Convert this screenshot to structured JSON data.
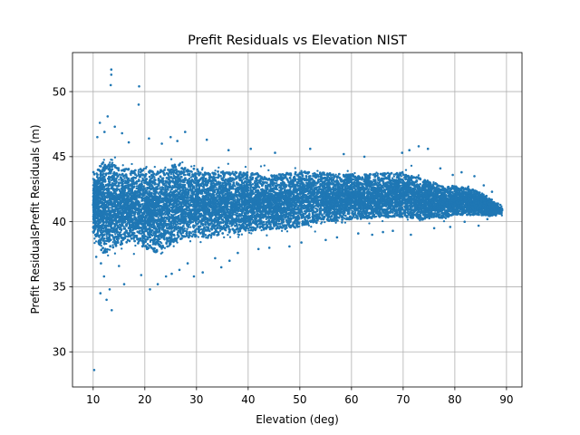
{
  "chart_data": {
    "type": "scatter",
    "title": "Prefit Residuals vs Elevation NIST",
    "xlabel": "Elevation (deg)",
    "ylabel": "Prefit ResidualsPrefit Residuals (m)",
    "xlim": [
      6,
      93
    ],
    "ylim": [
      27.3,
      53
    ],
    "x_ticks": [
      10,
      20,
      30,
      40,
      50,
      60,
      70,
      80,
      90
    ],
    "y_ticks": [
      30,
      35,
      40,
      45,
      50
    ],
    "grid": true,
    "color": "#1f77b4",
    "series": [
      {
        "name": "",
        "bands": [
          {
            "x": 10.5,
            "min": 37.2,
            "max": 45.5
          },
          {
            "x": 12,
            "min": 35.0,
            "max": 47.0
          },
          {
            "x": 14,
            "min": 35.8,
            "max": 46.5
          },
          {
            "x": 16,
            "min": 36.5,
            "max": 46.0
          },
          {
            "x": 18,
            "min": 36.5,
            "max": 46.0
          },
          {
            "x": 20,
            "min": 36.0,
            "max": 46.0
          },
          {
            "x": 22,
            "min": 35.5,
            "max": 46.0
          },
          {
            "x": 24,
            "min": 36.0,
            "max": 46.0
          },
          {
            "x": 26,
            "min": 36.5,
            "max": 46.5
          },
          {
            "x": 28,
            "min": 37.0,
            "max": 46.0
          },
          {
            "x": 30,
            "min": 37.0,
            "max": 45.8
          },
          {
            "x": 32,
            "min": 37.0,
            "max": 45.5
          },
          {
            "x": 35,
            "min": 37.5,
            "max": 45.5
          },
          {
            "x": 40,
            "min": 37.8,
            "max": 45.3
          },
          {
            "x": 45,
            "min": 38.0,
            "max": 45.0
          },
          {
            "x": 50,
            "min": 38.2,
            "max": 45.3
          },
          {
            "x": 55,
            "min": 38.8,
            "max": 45.0
          },
          {
            "x": 60,
            "min": 39.0,
            "max": 44.8
          },
          {
            "x": 65,
            "min": 39.2,
            "max": 44.8
          },
          {
            "x": 70,
            "min": 39.2,
            "max": 45.0
          },
          {
            "x": 73,
            "min": 39.0,
            "max": 44.5
          },
          {
            "x": 75,
            "min": 39.3,
            "max": 44.0
          },
          {
            "x": 78,
            "min": 39.5,
            "max": 43.5
          },
          {
            "x": 80,
            "min": 39.8,
            "max": 43.5
          },
          {
            "x": 83,
            "min": 39.8,
            "max": 43.3
          },
          {
            "x": 86,
            "min": 40.0,
            "max": 42.5
          },
          {
            "x": 89,
            "min": 40.2,
            "max": 41.5
          }
        ],
        "points": [
          [
            10.2,
            28.6
          ],
          [
            13.5,
            51.7
          ],
          [
            13.5,
            51.3
          ],
          [
            13.4,
            50.5
          ],
          [
            18.9,
            50.4
          ],
          [
            18.8,
            49.0
          ],
          [
            12.8,
            48.1
          ],
          [
            11.3,
            47.6
          ],
          [
            12.2,
            46.9
          ],
          [
            13.6,
            33.2
          ],
          [
            12.6,
            34.0
          ],
          [
            11.4,
            34.5
          ],
          [
            13.2,
            34.8
          ],
          [
            16.0,
            35.2
          ],
          [
            21.0,
            34.8
          ],
          [
            22.5,
            35.2
          ],
          [
            27.8,
            46.9
          ],
          [
            25.0,
            46.5
          ],
          [
            26.3,
            46.2
          ],
          [
            20.8,
            46.4
          ],
          [
            32.0,
            46.3
          ],
          [
            29.5,
            35.8
          ],
          [
            34.8,
            36.5
          ],
          [
            36.4,
            37.0
          ],
          [
            31.2,
            36.1
          ],
          [
            25.2,
            36.0
          ],
          [
            19.3,
            35.9
          ],
          [
            15.0,
            36.6
          ],
          [
            73.0,
            45.8
          ],
          [
            71.2,
            45.5
          ],
          [
            69.8,
            45.3
          ],
          [
            74.8,
            45.6
          ],
          [
            81.3,
            43.8
          ],
          [
            83.8,
            43.5
          ],
          [
            85.6,
            42.8
          ],
          [
            87.2,
            42.3
          ],
          [
            88.8,
            41.3
          ],
          [
            89.0,
            40.6
          ],
          [
            84.6,
            39.7
          ],
          [
            66.1,
            39.2
          ],
          [
            55.0,
            38.6
          ],
          [
            48.0,
            38.1
          ],
          [
            42.0,
            37.9
          ],
          [
            38.0,
            37.6
          ],
          [
            52.0,
            45.6
          ],
          [
            58.5,
            45.2
          ],
          [
            62.5,
            45.0
          ],
          [
            45.2,
            45.3
          ],
          [
            40.5,
            45.6
          ],
          [
            36.2,
            45.5
          ],
          [
            12.1,
            35.8
          ],
          [
            11.5,
            36.8
          ],
          [
            10.6,
            37.3
          ],
          [
            10.8,
            46.5
          ],
          [
            14.2,
            47.3
          ],
          [
            15.6,
            46.8
          ],
          [
            16.9,
            46.1
          ],
          [
            23.3,
            46.0
          ],
          [
            24.1,
            35.8
          ],
          [
            26.7,
            36.3
          ],
          [
            28.3,
            36.8
          ],
          [
            33.6,
            37.2
          ],
          [
            44.1,
            38.0
          ],
          [
            50.3,
            38.4
          ],
          [
            57.2,
            38.8
          ],
          [
            61.3,
            39.1
          ],
          [
            64.0,
            39.0
          ],
          [
            68.0,
            39.3
          ],
          [
            71.5,
            39.0
          ],
          [
            76.0,
            39.5
          ],
          [
            79.1,
            39.6
          ],
          [
            81.9,
            40.0
          ],
          [
            86.3,
            40.2
          ],
          [
            77.2,
            44.1
          ],
          [
            79.6,
            43.6
          ]
        ]
      }
    ]
  }
}
